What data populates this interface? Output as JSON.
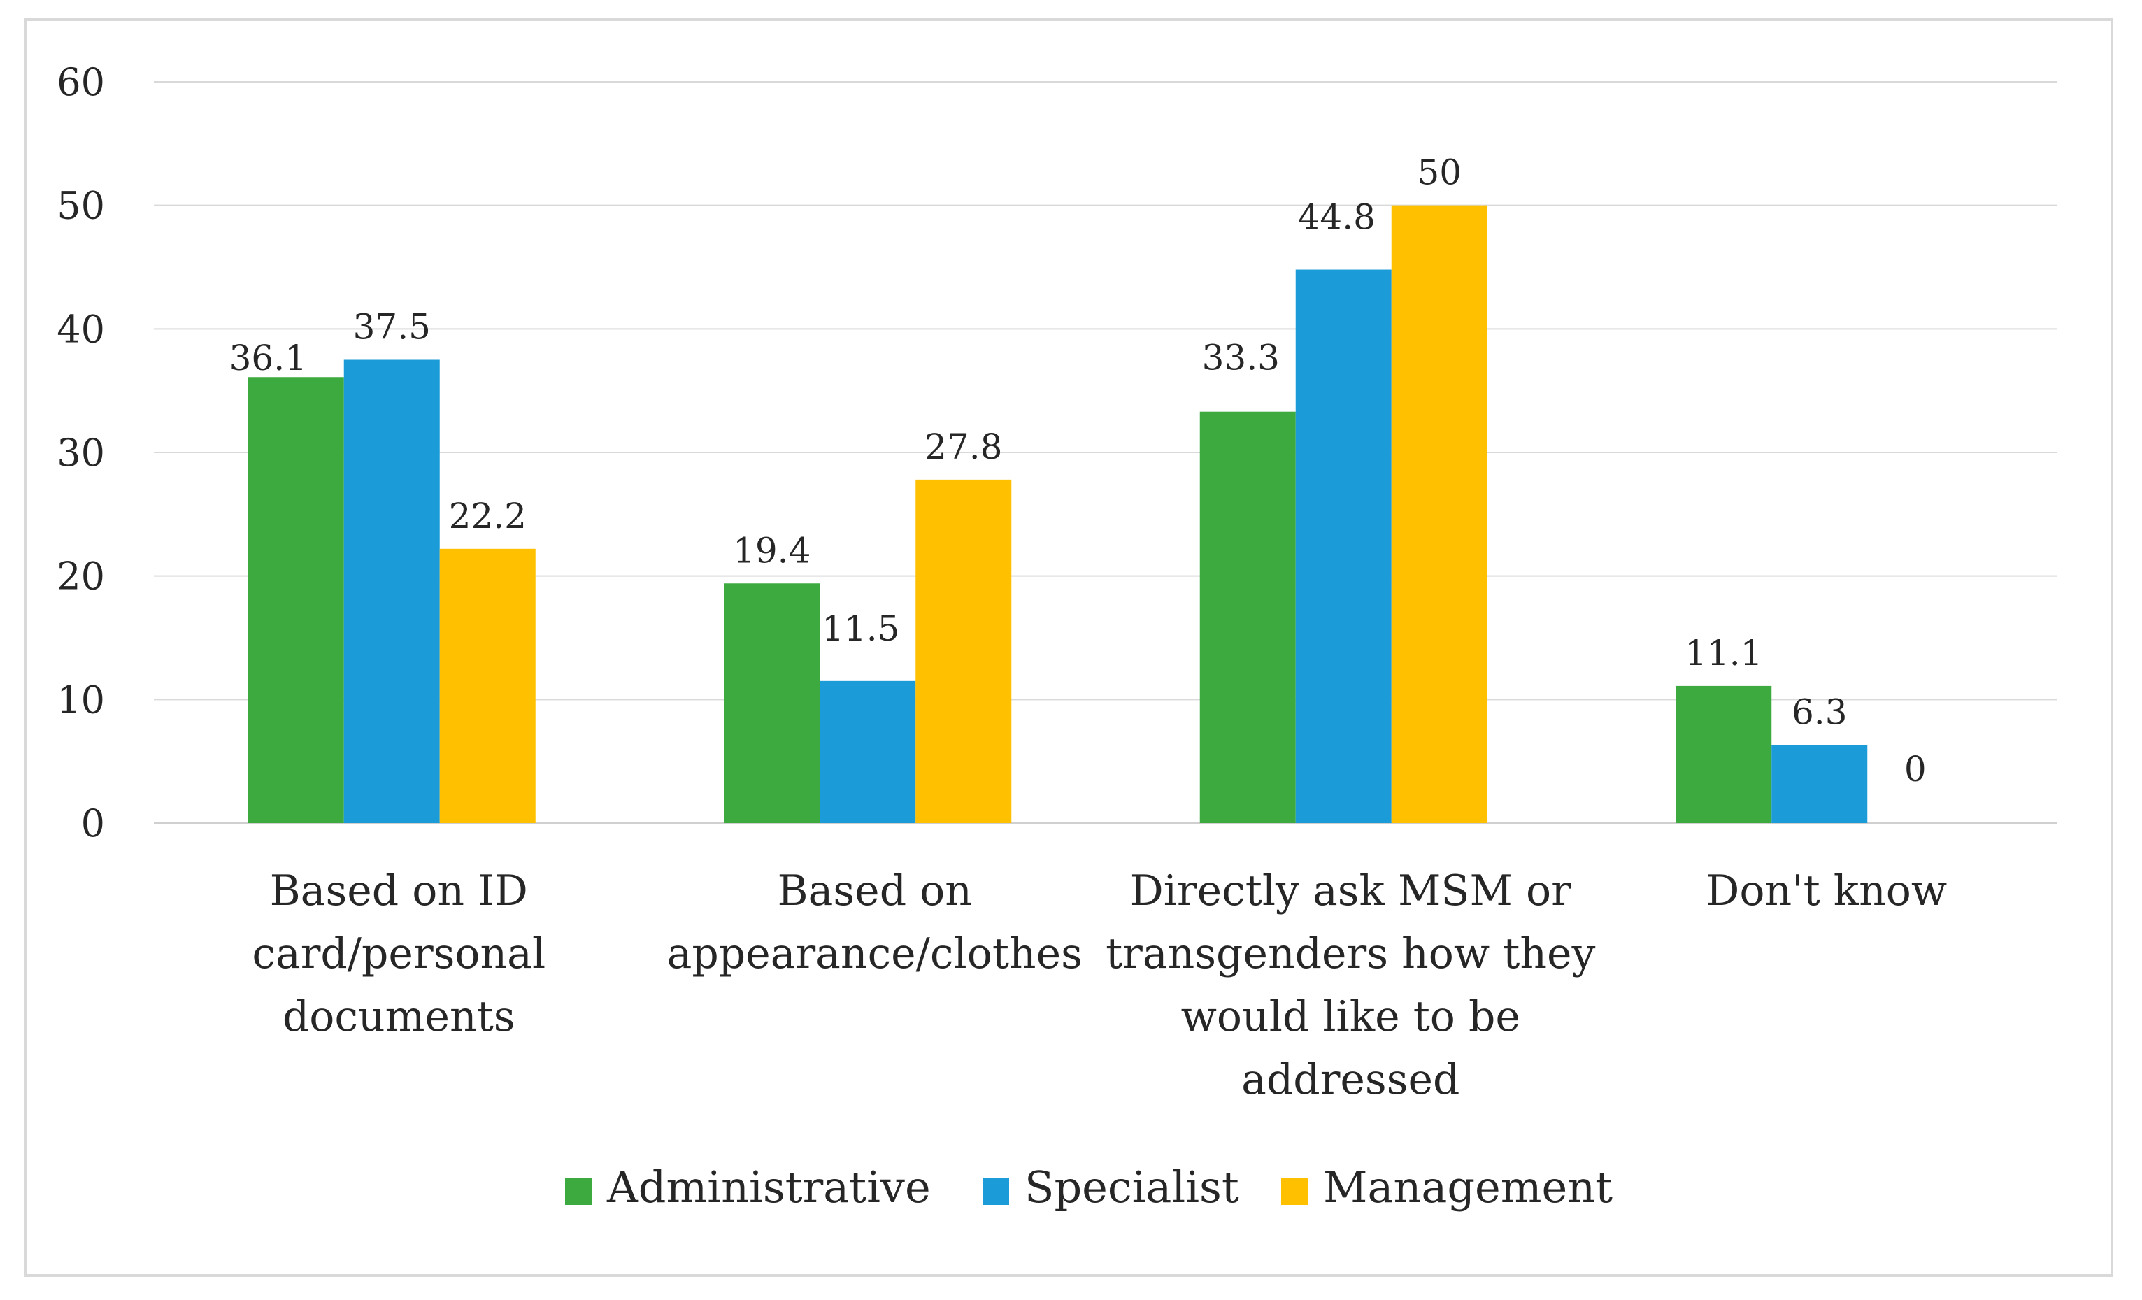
{
  "chart_data": {
    "type": "bar",
    "title": "",
    "xlabel": "",
    "ylabel": "",
    "ylim": [
      0,
      60
    ],
    "yticks": [
      0,
      10,
      20,
      30,
      40,
      50,
      60
    ],
    "grid": true,
    "legend_position": "bottom",
    "categories": [
      [
        "Based on ID",
        "card/personal",
        "documents"
      ],
      [
        "Based on",
        "appearance/clothes"
      ],
      [
        "Directly ask MSM or",
        "transgenders how they",
        "would like to be",
        "addressed"
      ],
      [
        "Don't know"
      ]
    ],
    "series": [
      {
        "name": "Administrative",
        "color": "#3daa3f",
        "values": [
          36.1,
          19.4,
          33.3,
          11.1
        ],
        "labels": [
          "36.1",
          "19.4",
          "33.3",
          "11.1"
        ]
      },
      {
        "name": "Specialist",
        "color": "#1b9bd7",
        "values": [
          37.5,
          11.5,
          44.8,
          6.3
        ],
        "labels": [
          "37.5",
          "11.5",
          "44.8",
          "6.3"
        ]
      },
      {
        "name": "Management",
        "color": "#ffc000",
        "values": [
          22.2,
          27.8,
          50,
          0
        ],
        "labels": [
          "22.2",
          "27.8",
          "50",
          "0"
        ]
      }
    ]
  }
}
